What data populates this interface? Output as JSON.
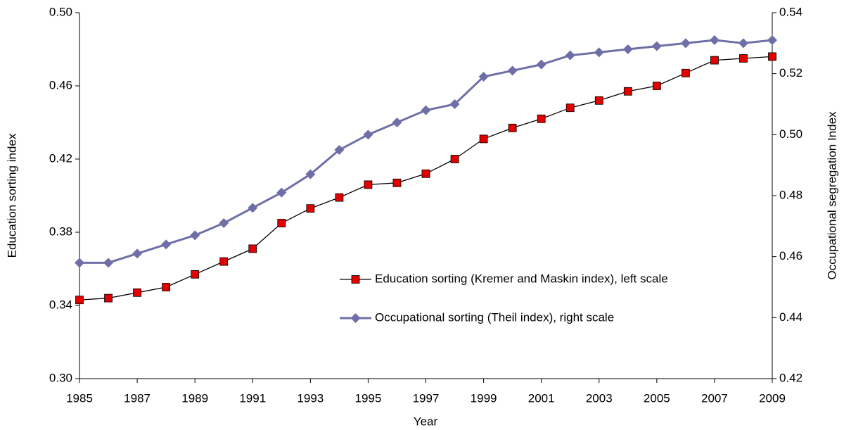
{
  "chart_data": {
    "type": "line",
    "x_label": "Year",
    "y_label": "Education sorting index",
    "y2_label": "Occupational segregation Index",
    "x": [
      1985,
      1986,
      1987,
      1988,
      1989,
      1990,
      1991,
      1992,
      1993,
      1994,
      1995,
      1996,
      1997,
      1998,
      1999,
      2000,
      2001,
      2002,
      2003,
      2004,
      2005,
      2006,
      2007,
      2008,
      2009
    ],
    "xlim": [
      1985,
      2009
    ],
    "xticks": [
      1985,
      1987,
      1989,
      1991,
      1993,
      1995,
      1997,
      1999,
      2001,
      2003,
      2005,
      2007,
      2009
    ],
    "ylim": [
      0.3,
      0.5
    ],
    "yticks": [
      {
        "value": 0.3,
        "label": "0.30"
      },
      0.34,
      0.38,
      0.42,
      0.46,
      {
        "value": 0.5,
        "label": "0.50"
      }
    ],
    "y2lim": [
      0.42,
      0.54
    ],
    "y2ticks": [
      0.42,
      0.44,
      0.46,
      0.48,
      {
        "value": 0.5,
        "label": "0.50"
      },
      0.52,
      0.54
    ],
    "series": [
      {
        "name": "Education sorting (Kremer and Maskin index), left scale",
        "color": "#000000",
        "marker_color": "#e00000",
        "marker": "square",
        "values": [
          0.343,
          0.344,
          0.347,
          0.35,
          0.357,
          0.364,
          0.371,
          0.385,
          0.393,
          0.399,
          0.406,
          0.407,
          0.412,
          0.42,
          0.431,
          0.437,
          0.442,
          0.448,
          0.452,
          0.457,
          0.46,
          0.467,
          0.474,
          0.475,
          0.476
        ]
      },
      {
        "name": "Occupational sorting (Theil index), right scale",
        "color": "#6f6fa8",
        "marker_color": "#6f6fa8",
        "marker": "diamond",
        "axis": "y2",
        "values": [
          0.458,
          0.458,
          0.461,
          0.464,
          0.467,
          0.471,
          0.476,
          0.481,
          0.487,
          0.495,
          0.5,
          0.504,
          0.508,
          0.51,
          0.519,
          0.521,
          0.523,
          0.526,
          0.527,
          0.528,
          0.529,
          0.53,
          0.531,
          0.53,
          0.531
        ]
      }
    ]
  }
}
